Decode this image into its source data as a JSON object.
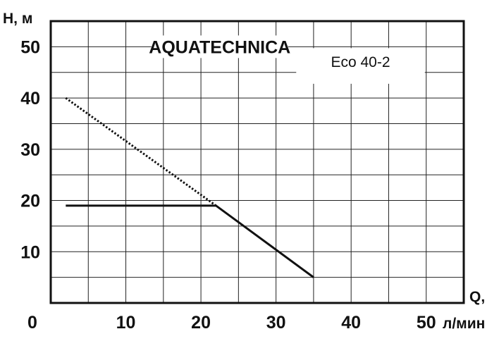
{
  "chart_data": {
    "type": "line",
    "brand": "AQUATECHNICA",
    "model": "Eco 40-2",
    "ylabel": "H, м",
    "xlabel_line1": "Q,",
    "xlabel_line2": "л/мин",
    "xlim": [
      0,
      55
    ],
    "ylim": [
      0,
      55
    ],
    "x_ticks": [
      "0",
      "10",
      "20",
      "30",
      "40",
      "50"
    ],
    "y_ticks": [
      "10",
      "20",
      "30",
      "40",
      "50"
    ],
    "grid": true,
    "series": [
      {
        "style": "solid",
        "x": [
          2,
          22,
          35
        ],
        "y": [
          19,
          19,
          5
        ]
      },
      {
        "style": "dotted",
        "x": [
          2,
          22
        ],
        "y": [
          40,
          19
        ]
      }
    ]
  }
}
